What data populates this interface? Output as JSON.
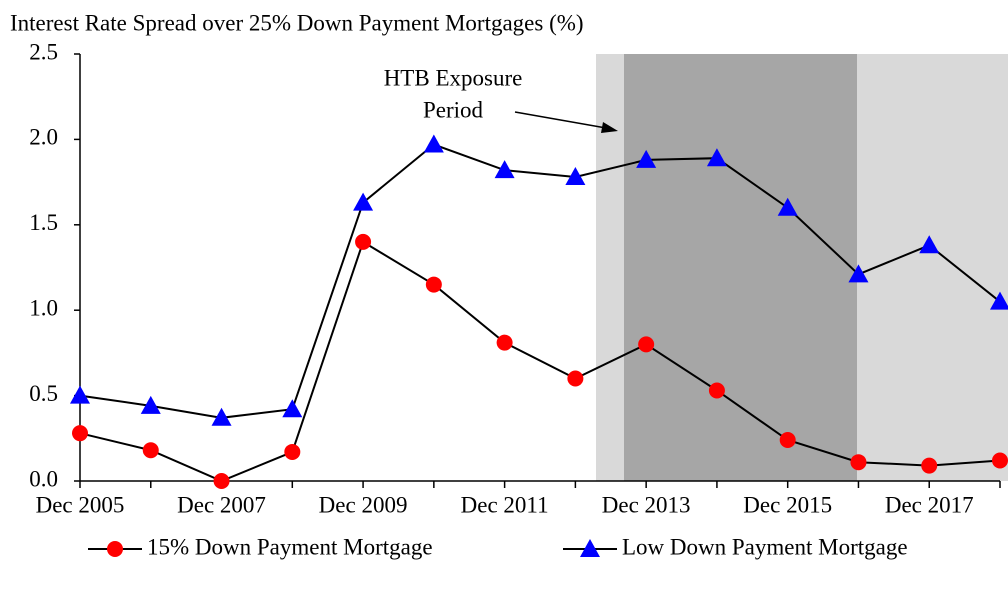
{
  "chart_data": {
    "type": "line",
    "title": "Interest Rate Spread over 25% Down Payment Mortgages (%)",
    "annotation": [
      "HTB Exposure",
      "Period"
    ],
    "categories": [
      "Dec 2005",
      null,
      "Dec 2007",
      null,
      "Dec 2009",
      null,
      "Dec 2011",
      null,
      "Dec 2013",
      null,
      "Dec 2015",
      null,
      "Dec 2017",
      null
    ],
    "series": [
      {
        "name": "15% Down Payment Mortgage",
        "color": "#ff0000",
        "marker": "circle",
        "values": [
          0.28,
          0.18,
          0.0,
          0.17,
          1.4,
          1.15,
          0.81,
          0.6,
          0.8,
          0.53,
          0.24,
          0.11,
          0.09,
          0.12
        ]
      },
      {
        "name": "Low Down Payment Mortgage",
        "color": "#0000ff",
        "marker": "triangle",
        "values": [
          0.5,
          0.44,
          0.37,
          0.42,
          1.63,
          1.97,
          1.82,
          1.78,
          1.88,
          1.89,
          1.6,
          1.21,
          1.38,
          1.05
        ]
      }
    ],
    "ylim": [
      0,
      2.5
    ],
    "yticks": [
      {
        "value": 0,
        "label": "0.0"
      },
      0.5,
      {
        "value": 1,
        "label": "1.0"
      },
      1.5,
      {
        "value": 2,
        "label": "2.0"
      },
      2.5
    ],
    "legend": "bottom"
  }
}
